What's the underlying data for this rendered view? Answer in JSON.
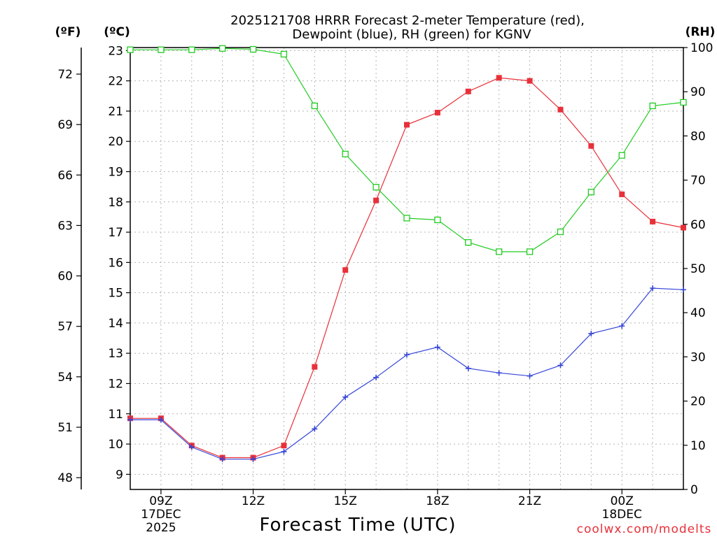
{
  "chart_data": {
    "type": "line",
    "title": [
      "2025121708 HRRR Forecast 2-meter Temperature (red),",
      "Dewpoint (blue), RH (green) for KGNV"
    ],
    "xlabel": "Forecast Time (UTC)",
    "units": {
      "fahrenheit": "(ºF)",
      "celsius": "(ºC)",
      "rh": "(RH)"
    },
    "x": [
      8,
      9,
      10,
      11,
      12,
      13,
      14,
      15,
      16,
      17,
      18,
      19,
      20,
      21,
      22,
      23,
      24,
      25,
      26
    ],
    "xlim": [
      8,
      26
    ],
    "x_ticks": [
      {
        "x": 9,
        "lines": [
          "09Z",
          "17DEC",
          "2025"
        ]
      },
      {
        "x": 12,
        "lines": [
          "12Z"
        ]
      },
      {
        "x": 15,
        "lines": [
          "15Z"
        ]
      },
      {
        "x": 18,
        "lines": [
          "18Z"
        ]
      },
      {
        "x": 21,
        "lines": [
          "21Z"
        ]
      },
      {
        "x": 24,
        "lines": [
          "00Z",
          "18DEC"
        ]
      }
    ],
    "y_left_celsius": {
      "ylim": [
        8.5,
        23.1
      ],
      "ticks": [
        9,
        10,
        11,
        12,
        13,
        14,
        15,
        16,
        17,
        18,
        19,
        20,
        21,
        22,
        23
      ]
    },
    "y_left_fahrenheit": {
      "ticks": [
        48,
        51,
        54,
        57,
        60,
        63,
        66,
        69,
        72
      ]
    },
    "y_right_rh": {
      "ylim": [
        0,
        100
      ],
      "ticks": [
        0,
        10,
        20,
        30,
        40,
        50,
        60,
        70,
        80,
        90,
        100
      ]
    },
    "series": [
      {
        "name": "Temperature",
        "unit": "C",
        "color": "#e8303a",
        "marker": "filled-square",
        "values": [
          10.85,
          10.85,
          9.95,
          9.55,
          9.55,
          9.95,
          12.55,
          15.75,
          18.05,
          20.55,
          20.95,
          21.65,
          22.1,
          22.0,
          21.05,
          19.85,
          18.25,
          17.35,
          17.15
        ]
      },
      {
        "name": "Dewpoint",
        "unit": "C",
        "color": "#3546d8",
        "marker": "plus",
        "values": [
          10.8,
          10.8,
          9.9,
          9.5,
          9.5,
          9.75,
          10.5,
          11.55,
          12.2,
          12.95,
          13.2,
          12.5,
          12.35,
          12.25,
          12.6,
          13.65,
          13.9,
          15.15,
          15.1
        ]
      },
      {
        "name": "RH",
        "unit": "%",
        "color": "#22cc22",
        "marker": "open-square",
        "values": [
          99.5,
          99.5,
          99.5,
          99.8,
          99.6,
          98.5,
          86.8,
          75.9,
          68.4,
          61.4,
          61.0,
          55.9,
          53.8,
          53.8,
          58.3,
          67.3,
          75.6,
          86.8,
          87.6
        ]
      }
    ],
    "grid": true,
    "credit": "coolwx.com/modelts"
  }
}
